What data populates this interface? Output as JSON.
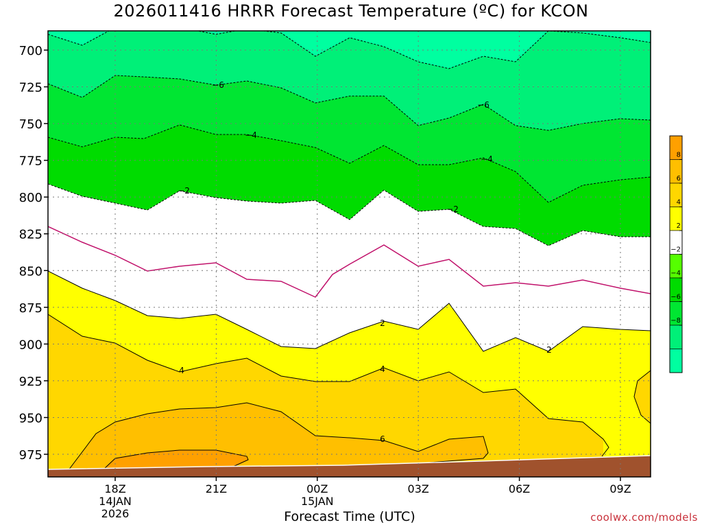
{
  "chart_data": {
    "type": "contour",
    "title": "2026011416 HRRR Forecast Temperature (ºC) for KCON",
    "xlabel": "Forecast Time (UTC)",
    "ylabel": "",
    "credit": "coolwx.com/models",
    "y_ticks": [
      "700",
      "725",
      "750",
      "775",
      "800",
      "825",
      "850",
      "875",
      "900",
      "925",
      "950",
      "975"
    ],
    "x_ticks": [
      {
        "hour": 2,
        "lines": [
          "18Z",
          "14JAN",
          "2026"
        ]
      },
      {
        "hour": 5,
        "lines": [
          "21Z"
        ]
      },
      {
        "hour": 8,
        "lines": [
          "00Z",
          "15JAN"
        ]
      },
      {
        "hour": 11,
        "lines": [
          "03Z"
        ]
      },
      {
        "hour": 14,
        "lines": [
          "06Z"
        ]
      },
      {
        "hour": 17,
        "lines": [
          "09Z"
        ]
      }
    ],
    "colorbar": {
      "levels": [
        -10,
        -8,
        -6,
        -4,
        -2,
        2,
        4,
        6,
        8,
        10
      ],
      "tick_labels": [
        "8",
        "6",
        "4",
        "2",
        "−2",
        "−4",
        "−6",
        "−8"
      ],
      "colors": [
        "#00ffa0",
        "#00f078",
        "#00e632",
        "#00dc00",
        "#55ff00",
        "#ffffff",
        "#ffff00",
        "#ffd700",
        "#ffbf00",
        "#ffa000"
      ]
    },
    "contour_labels": [
      "−6",
      "−6",
      "−4",
      "−4",
      "−2",
      "−2",
      "2",
      "2",
      "4",
      "4",
      "6"
    ],
    "ground_color": "#a0522d",
    "grid": true
  }
}
